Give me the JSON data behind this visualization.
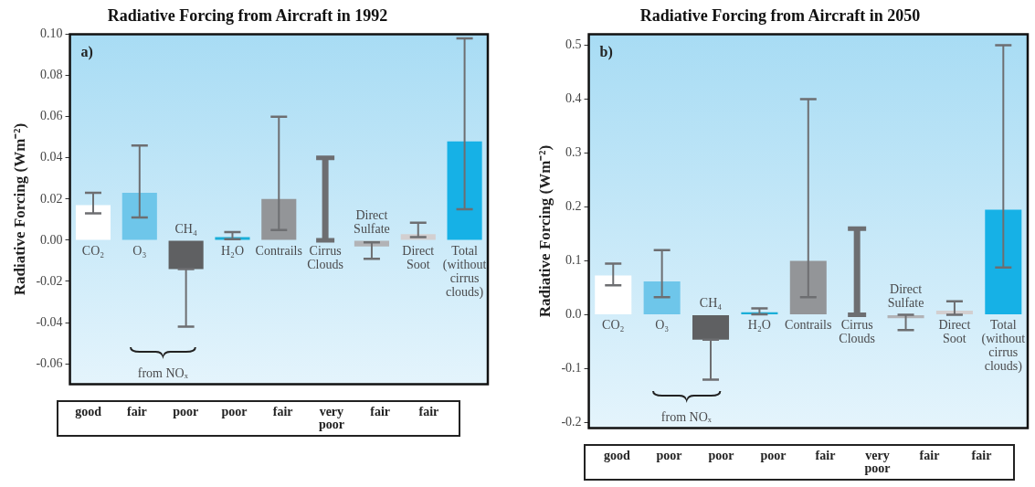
{
  "chart_data": [
    {
      "type": "bar",
      "title": "Radiative Forcing from Aircraft in 1992",
      "ylabel": "Radiative Forcing (Wm⁻²)",
      "categories": [
        "CO₂",
        "O₃",
        "CH₄",
        "H₂O",
        "Contrails",
        "Cirrus Clouds",
        "Direct Sulfate",
        "Direct Soot",
        "Total (without cirrus clouds)"
      ],
      "values": [
        0.017,
        0.023,
        -0.014,
        0.0015,
        0.02,
        0,
        -0.003,
        0.003,
        0.048
      ],
      "colors": [
        "#ffffff",
        "#6ec6ea",
        "#5f6062",
        "#1aaed8",
        "#939598",
        "#6d6e71",
        "#b2b3b6",
        "#d3cfd0",
        "#16b1e6"
      ],
      "errors": [
        [
          0.013,
          0.023
        ],
        [
          0.011,
          0.046
        ],
        [
          -0.042,
          -0.014
        ],
        [
          0.0005,
          0.004
        ],
        [
          0.005,
          0.06
        ],
        [
          0,
          0.04
        ],
        [
          -0.009,
          -0.001
        ],
        [
          0.0015,
          0.0085
        ],
        [
          0.015,
          0.098
        ]
      ],
      "ylim": [
        -0.07,
        0.1
      ],
      "yticks": [
        {
          "value": 0.1,
          "label": "0.10"
        },
        {
          "value": 0.08,
          "label": "0.08"
        },
        {
          "value": 0.06,
          "label": "0.06"
        },
        {
          "value": 0.04,
          "label": "0.04"
        },
        {
          "value": 0.02,
          "label": "0.02"
        },
        {
          "value": 0,
          "label": "0.00"
        },
        {
          "value": -0.02,
          "label": "-0.02"
        },
        {
          "value": -0.04,
          "label": "-0.04"
        },
        {
          "value": -0.06,
          "label": "-0.06"
        }
      ],
      "annotations": [
        "a)",
        "from NOₓ",
        "good",
        "fair",
        "poor",
        "poor",
        "fair",
        "very poor",
        "fair",
        "fair"
      ]
    },
    {
      "type": "bar",
      "title": "Radiative Forcing from Aircraft in 2050",
      "ylabel": "Radiative Forcing (Wm⁻²)",
      "categories": [
        "CO₂",
        "O₃",
        "CH₄",
        "H₂O",
        "Contrails",
        "Cirrus Clouds",
        "Direct Sulfate",
        "Direct Soot",
        "Total (without cirrus clouds)"
      ],
      "values": [
        0.073,
        0.062,
        -0.046,
        0.005,
        0.1,
        0,
        -0.006,
        0.008,
        0.195
      ],
      "colors": [
        "#ffffff",
        "#6ec6ea",
        "#5f6062",
        "#1aaed8",
        "#939598",
        "#6d6e71",
        "#b2b3b6",
        "#d3cfd0",
        "#16b1e6"
      ],
      "errors": [
        [
          0.055,
          0.095
        ],
        [
          0.033,
          0.12
        ],
        [
          -0.12,
          -0.046
        ],
        [
          0.001,
          0.012
        ],
        [
          0.033,
          0.4
        ],
        [
          0,
          0.16
        ],
        [
          -0.028,
          0
        ],
        [
          0,
          0.025
        ],
        [
          0.088,
          0.5
        ]
      ],
      "ylim": [
        -0.21,
        0.52
      ],
      "yticks": [
        0.5,
        0.4,
        0.3,
        0.2,
        0.1,
        {
          "value": 0,
          "label": "0.0"
        },
        -0.1,
        -0.2
      ],
      "annotations": [
        "b)",
        "from NOₓ",
        "good",
        "poor",
        "poor",
        "poor",
        "fair",
        "very poor",
        "fair",
        "fair"
      ]
    }
  ]
}
